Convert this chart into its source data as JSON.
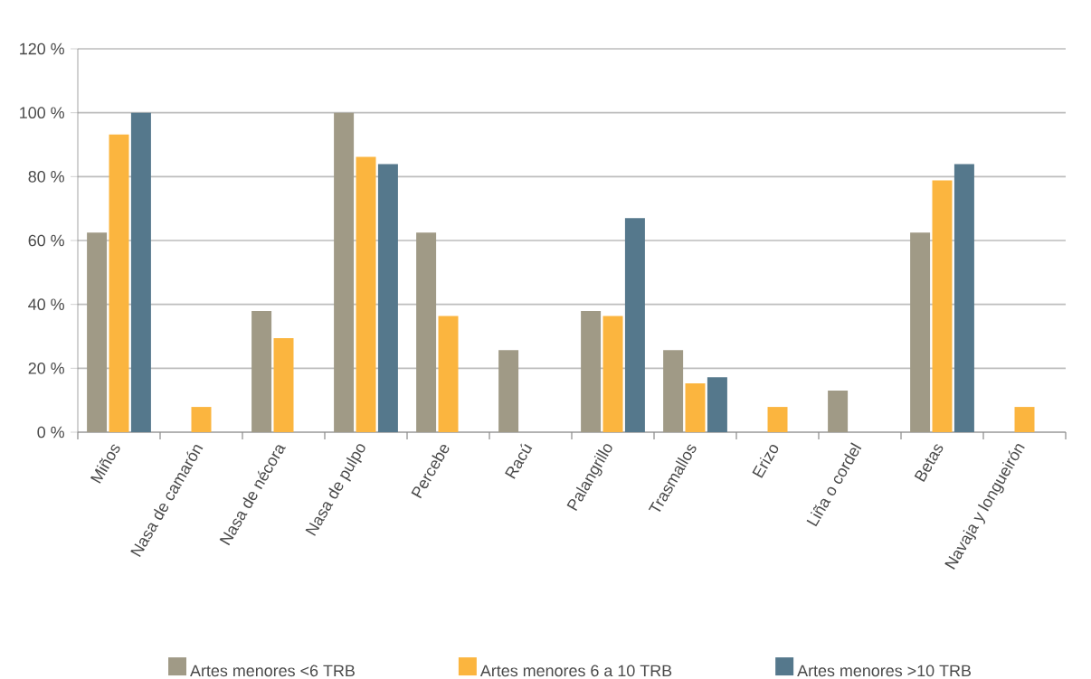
{
  "chart_data": {
    "type": "bar",
    "categories": [
      "Miños",
      "Nasa de camarón",
      "Nasa de nécora",
      "Nasa de pulpo",
      "Percebe",
      "Racú",
      "Palangrillo",
      "Trasmallos",
      "Erizo",
      "Liña o cordel",
      "Betas",
      "Navaja y longueirón"
    ],
    "series": [
      {
        "name": "Artes menores <6 TRB",
        "color": "#a09a86",
        "values": [
          62.5,
          null,
          37.9,
          100,
          62.5,
          25.7,
          37.9,
          25.7,
          null,
          13,
          62.5,
          null
        ]
      },
      {
        "name": "Artes menores 6 a 10 TRB",
        "color": "#fbb53f",
        "values": [
          93.2,
          7.9,
          29.4,
          86.2,
          36.4,
          null,
          36.4,
          15.3,
          7.9,
          null,
          78.8,
          7.9
        ]
      },
      {
        "name": "Artes menores >10 TRB",
        "color": "#55788c",
        "values": [
          100,
          null,
          null,
          83.9,
          null,
          null,
          67,
          17.2,
          null,
          null,
          83.9,
          null
        ]
      }
    ],
    "ylim": [
      0,
      120
    ],
    "yticks": [
      {
        "value": 0,
        "label": "0 %"
      },
      {
        "value": 20,
        "label": "20 %"
      },
      {
        "value": 40,
        "label": "40 %"
      },
      {
        "value": 60,
        "label": "60 %"
      },
      {
        "value": 80,
        "label": "80 %"
      },
      {
        "value": 100,
        "label": "100 %"
      },
      {
        "value": 120,
        "label": "120 %"
      }
    ],
    "grid": "y",
    "legend": "bottom"
  }
}
